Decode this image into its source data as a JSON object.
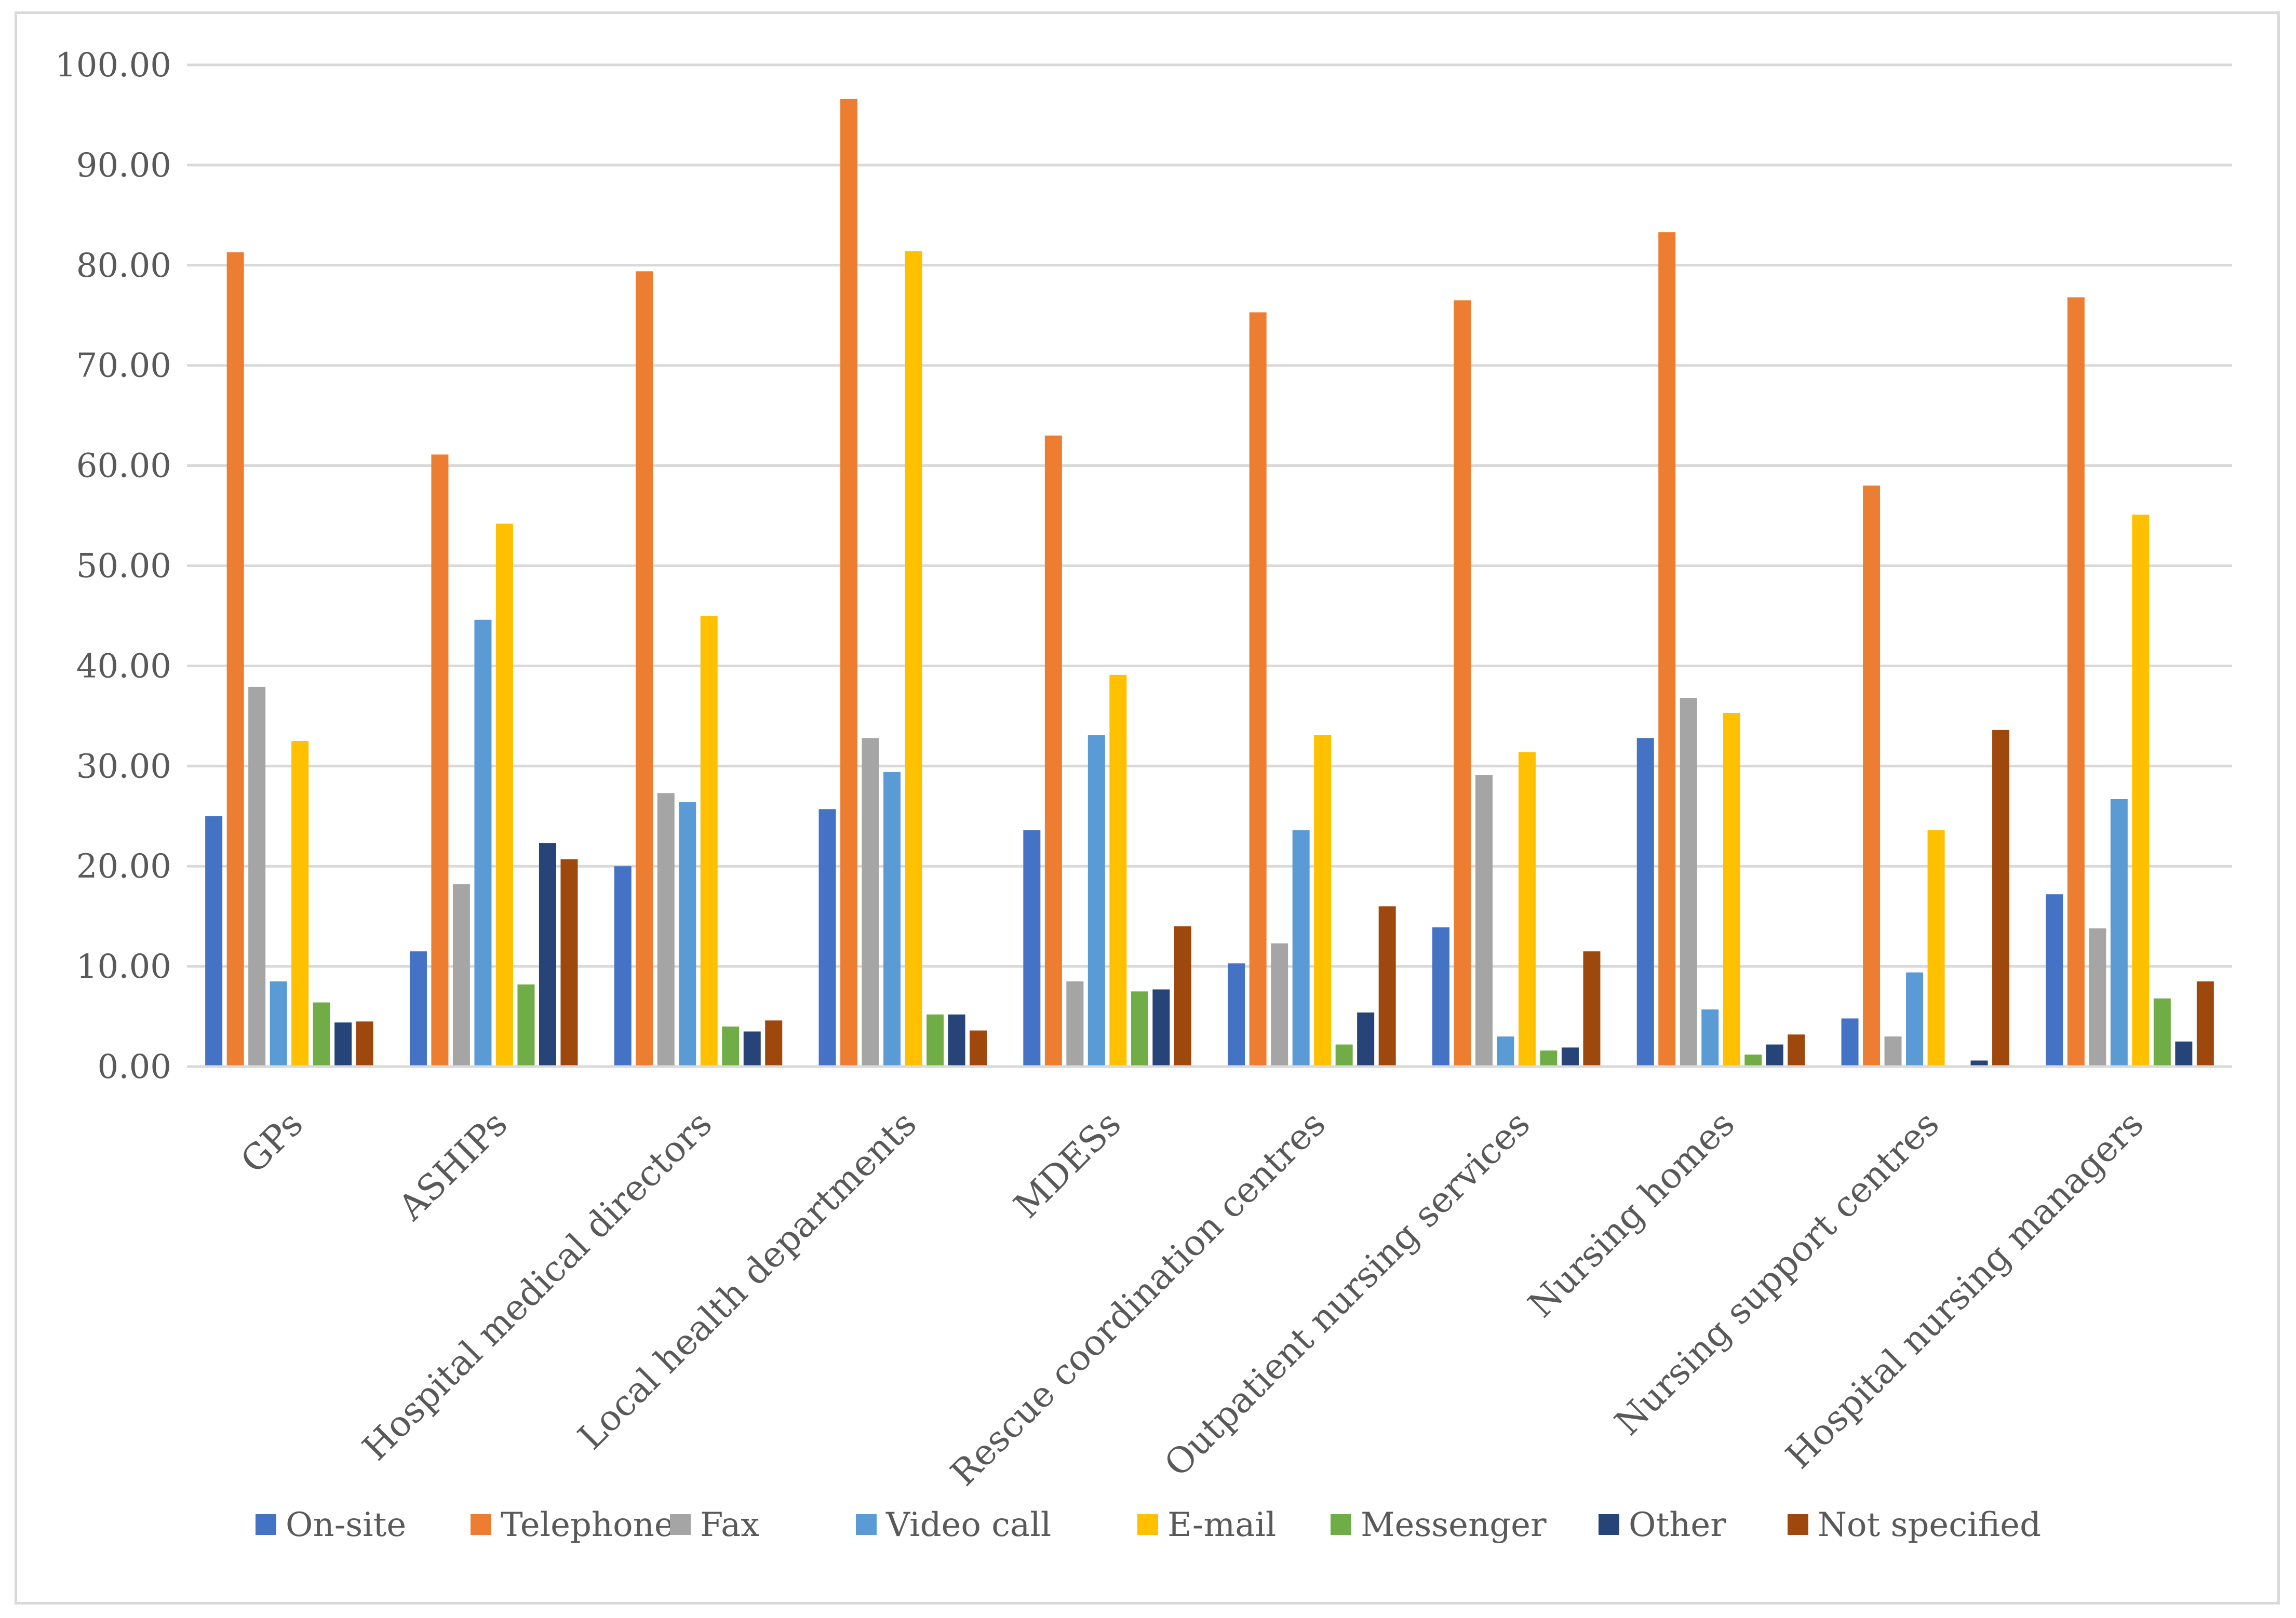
{
  "chart_data": {
    "type": "bar",
    "title": "",
    "xlabel": "",
    "ylabel": "",
    "ylim": [
      0,
      100
    ],
    "yticks": [
      0,
      10,
      20,
      30,
      40,
      50,
      60,
      70,
      80,
      90,
      100
    ],
    "ytick_labels": [
      "0.00",
      "10.00",
      "20.00",
      "30.00",
      "40.00",
      "50.00",
      "60.00",
      "70.00",
      "80.00",
      "90.00",
      "100.00"
    ],
    "grid": true,
    "legend_position": "bottom",
    "categories": [
      "GPs",
      "ASHIPs",
      "Hospital medical directors",
      "Local health departments",
      "MDESs",
      "Rescue coordination centres",
      "Outpatient nursing services",
      "Nursing homes",
      "Nursing support centres",
      "Hospital nursing managers"
    ],
    "series": [
      {
        "name": "On-site",
        "color": "#4472c4",
        "values": [
          25.0,
          11.5,
          20.0,
          25.7,
          23.6,
          10.3,
          13.9,
          32.8,
          4.8,
          17.2
        ]
      },
      {
        "name": "Telephone",
        "color": "#ed7d31",
        "values": [
          81.3,
          61.1,
          79.4,
          96.6,
          63.0,
          75.3,
          76.5,
          83.3,
          58.0,
          76.8
        ]
      },
      {
        "name": "Fax",
        "color": "#a5a5a5",
        "values": [
          37.9,
          18.2,
          27.3,
          32.8,
          8.5,
          12.3,
          29.1,
          36.8,
          3.0,
          13.8
        ]
      },
      {
        "name": "Video call",
        "color": "#5b9bd5",
        "values": [
          8.5,
          44.6,
          26.4,
          29.4,
          33.1,
          23.6,
          3.0,
          5.7,
          9.4,
          26.7
        ]
      },
      {
        "name": "E-mail",
        "color": "#ffc000",
        "values": [
          32.5,
          54.2,
          45.0,
          81.4,
          39.1,
          33.1,
          31.4,
          35.3,
          23.6,
          55.1
        ]
      },
      {
        "name": "Messenger",
        "color": "#70ad47",
        "values": [
          6.4,
          8.2,
          4.0,
          5.2,
          7.5,
          2.2,
          1.6,
          1.2,
          0.0,
          6.8
        ]
      },
      {
        "name": "Other",
        "color": "#264478",
        "values": [
          4.4,
          22.3,
          3.5,
          5.2,
          7.7,
          5.4,
          1.9,
          2.2,
          0.6,
          2.5
        ]
      },
      {
        "name": "Not specified",
        "color": "#9e480e",
        "values": [
          4.5,
          20.7,
          4.6,
          3.6,
          14.0,
          16.0,
          11.5,
          3.2,
          33.6,
          8.5
        ]
      }
    ]
  }
}
